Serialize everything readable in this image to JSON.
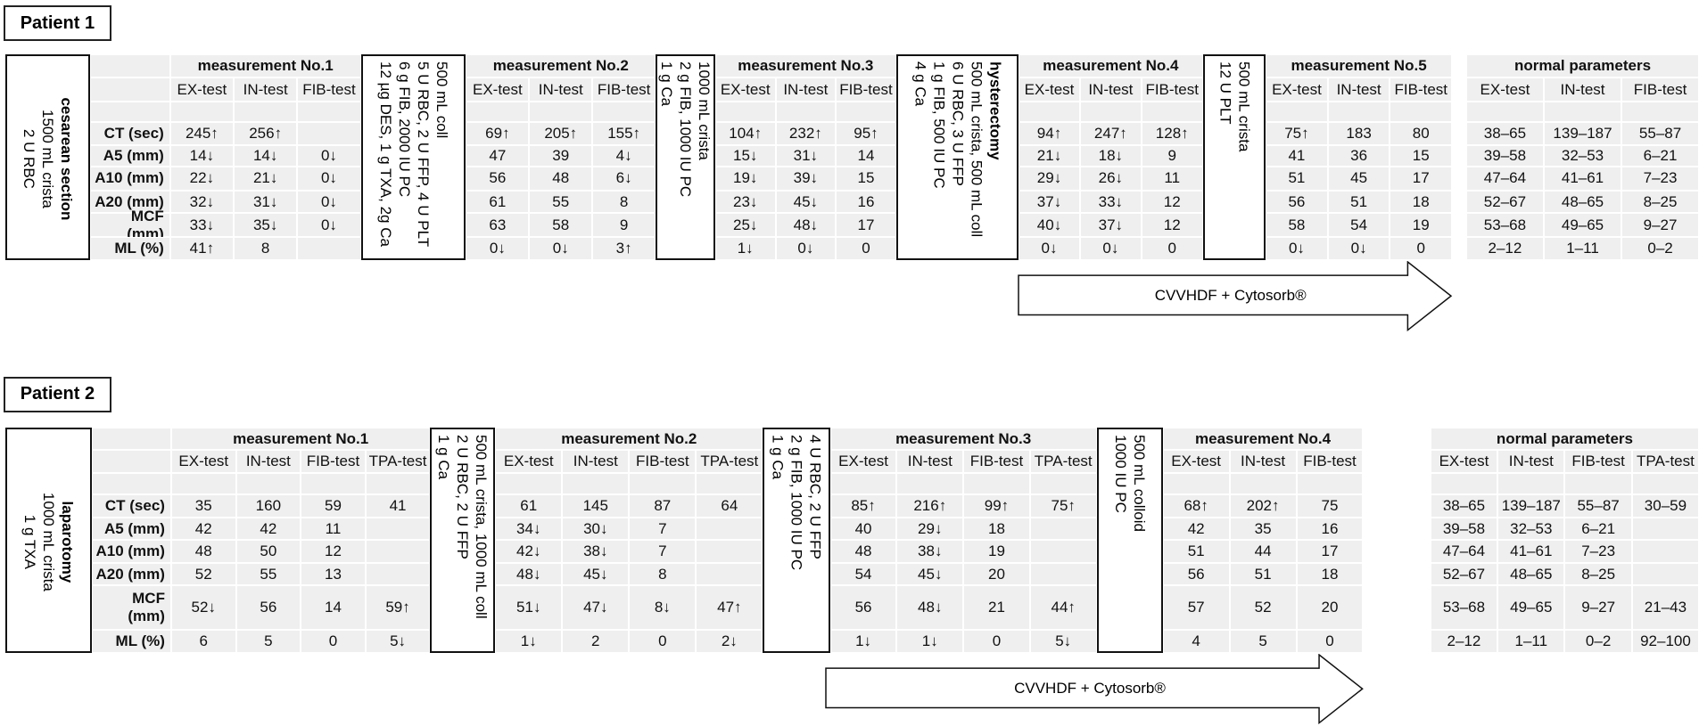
{
  "patients": [
    {
      "title": "Patient 1",
      "row_labels": [
        "CT (sec)",
        "A5 (mm)",
        "A10 (mm)",
        "A20 (mm)",
        "MCF (mm)",
        "ML (%)"
      ],
      "interventions": [
        {
          "heading": "cesarean section",
          "lines": [
            "1500 mL crista",
            "2 U RBC"
          ]
        },
        {
          "lines": [
            "500 mL coll",
            "5 U RBC, 2 U FFP, 4 U PLT",
            "6 g FIB, 2000 IU PC",
            "12 µg DES, 1 g TXA, 2g Ca"
          ]
        },
        {
          "lines": [
            "1000 mL crista",
            "2 g FIB, 1000 IU PC",
            "1 g Ca"
          ]
        },
        {
          "heading": "hysterectomy",
          "lines": [
            "500 mL crista, 500 mL coll",
            "6 U RBC, 3 U FFP",
            "1 g FIB, 500 IU PC",
            "4 g Ca"
          ]
        },
        {
          "lines": [
            "500 mL crista",
            "12 U PLT"
          ]
        }
      ],
      "measurements": [
        {
          "title": "measurement No.1",
          "columns": [
            "EX-test",
            "IN-test",
            "FIB-test"
          ],
          "rows": [
            [
              "245↑",
              "256↑",
              null
            ],
            [
              "14↓",
              "14↓",
              "0↓"
            ],
            [
              "22↓",
              "21↓",
              "0↓"
            ],
            [
              "32↓",
              "31↓",
              "0↓"
            ],
            [
              "33↓",
              "35↓",
              "0↓"
            ],
            [
              "41↑",
              "8",
              null
            ]
          ]
        },
        {
          "title": "measurement No.2",
          "columns": [
            "EX-test",
            "IN-test",
            "FIB-test"
          ],
          "rows": [
            [
              "69↑",
              "205↑",
              "155↑"
            ],
            [
              "47",
              "39",
              "4↓"
            ],
            [
              "56",
              "48",
              "6↓"
            ],
            [
              "61",
              "55",
              "8"
            ],
            [
              "63",
              "58",
              "9"
            ],
            [
              "0↓",
              "0↓",
              "3↑"
            ]
          ]
        },
        {
          "title": "measurement No.3",
          "columns": [
            "EX-test",
            "IN-test",
            "FIB-test"
          ],
          "rows": [
            [
              "104↑",
              "232↑",
              "95↑"
            ],
            [
              "15↓",
              "31↓",
              "14"
            ],
            [
              "19↓",
              "39↓",
              "15"
            ],
            [
              "23↓",
              "45↓",
              "16"
            ],
            [
              "25↓",
              "48↓",
              "17"
            ],
            [
              "1↓",
              "0↓",
              "0"
            ]
          ]
        },
        {
          "title": "measurement No.4",
          "columns": [
            "EX-test",
            "IN-test",
            "FIB-test"
          ],
          "rows": [
            [
              "94↑",
              "247↑",
              "128↑"
            ],
            [
              "21↓",
              "18↓",
              "9"
            ],
            [
              "29↓",
              "26↓",
              "11"
            ],
            [
              "37↓",
              "33↓",
              "12"
            ],
            [
              "40↓",
              "37↓",
              "12"
            ],
            [
              "0↓",
              "0↓",
              "0"
            ]
          ]
        },
        {
          "title": "measurement No.5",
          "columns": [
            "EX-test",
            "IN-test",
            "FIB-test"
          ],
          "rows": [
            [
              "75↑",
              "183",
              "80"
            ],
            [
              "41",
              "36",
              "15"
            ],
            [
              "51",
              "45",
              "17"
            ],
            [
              "56",
              "51",
              "18"
            ],
            [
              "58",
              "54",
              "19"
            ],
            [
              "0↓",
              "0↓",
              "0"
            ]
          ]
        }
      ],
      "normal": {
        "title": "normal parameters",
        "columns": [
          "EX-test",
          "IN-test",
          "FIB-test"
        ],
        "rows": [
          [
            "38–65",
            "139–187",
            "55–87"
          ],
          [
            "39–58",
            "32–53",
            "6–21"
          ],
          [
            "47–64",
            "41–61",
            "7–23"
          ],
          [
            "52–67",
            "48–65",
            "8–25"
          ],
          [
            "53–68",
            "49–65",
            "9–27"
          ],
          [
            "2–12",
            "1–11",
            "0–2"
          ]
        ]
      },
      "arrow": "CVVHDF + Cytosorb®"
    },
    {
      "title": "Patient 2",
      "row_labels": [
        "CT (sec)",
        "A5 (mm)",
        "A10 (mm)",
        "A20 (mm)",
        "MCF (mm)",
        "ML (%)"
      ],
      "interventions": [
        {
          "heading": "laparotomy",
          "lines": [
            "1000 mL crista",
            "1 g TXA"
          ]
        },
        {
          "lines": [
            "500 mL crista, 1000 mL coll",
            "2 U RBC, 2 U FFP",
            "1 g Ca"
          ]
        },
        {
          "lines": [
            "4 U RBC, 2 U FFP",
            "2 g FIB, 1000 IU PC",
            "1 g Ca"
          ]
        },
        {
          "lines": [
            "500 mL colloid",
            "1000 IU PC"
          ]
        }
      ],
      "measurements": [
        {
          "title": "measurement No.1",
          "columns": [
            "EX-test",
            "IN-test",
            "FIB-test",
            "TPA-test"
          ],
          "rows": [
            [
              "35",
              "160",
              "59",
              "41"
            ],
            [
              "42",
              "42",
              "11",
              null
            ],
            [
              "48",
              "50",
              "12",
              null
            ],
            [
              "52",
              "55",
              "13",
              null
            ],
            [
              "52↓",
              "56",
              "14",
              "59↑"
            ],
            [
              "6",
              "5",
              "0",
              "5↓"
            ]
          ]
        },
        {
          "title": "measurement No.2",
          "columns": [
            "EX-test",
            "IN-test",
            "FIB-test",
            "TPA-test"
          ],
          "rows": [
            [
              "61",
              "145",
              "87",
              "64"
            ],
            [
              "34↓",
              "30↓",
              "7",
              null
            ],
            [
              "42↓",
              "38↓",
              "7",
              null
            ],
            [
              "48↓",
              "45↓",
              "8",
              null
            ],
            [
              "51↓",
              "47↓",
              "8↓",
              "47↑"
            ],
            [
              "1↓",
              "2",
              "0",
              "2↓"
            ]
          ]
        },
        {
          "title": "measurement No.3",
          "columns": [
            "EX-test",
            "IN-test",
            "FIB-test",
            "TPA-test"
          ],
          "rows": [
            [
              "85↑",
              "216↑",
              "99↑",
              "75↑"
            ],
            [
              "40",
              "29↓",
              "18",
              null
            ],
            [
              "48",
              "38↓",
              "19",
              null
            ],
            [
              "54",
              "45↓",
              "20",
              null
            ],
            [
              "56",
              "48↓",
              "21",
              "44↑"
            ],
            [
              "1↓",
              "1↓",
              "0",
              "5↓"
            ]
          ]
        },
        {
          "title": "measurement No.4",
          "columns": [
            "EX-test",
            "IN-test",
            "FIB-test"
          ],
          "rows": [
            [
              "68↑",
              "202↑",
              "75"
            ],
            [
              "42",
              "35",
              "16"
            ],
            [
              "51",
              "44",
              "17"
            ],
            [
              "56",
              "51",
              "18"
            ],
            [
              "57",
              "52",
              "20"
            ],
            [
              "4",
              "5",
              "0"
            ]
          ]
        }
      ],
      "normal": {
        "title": "normal parameters",
        "columns": [
          "EX-test",
          "IN-test",
          "FIB-test",
          "TPA-test"
        ],
        "rows": [
          [
            "38–65",
            "139–187",
            "55–87",
            "30–59"
          ],
          [
            "39–58",
            "32–53",
            "6–21",
            null
          ],
          [
            "47–64",
            "41–61",
            "7–23",
            null
          ],
          [
            "52–67",
            "48–65",
            "8–25",
            null
          ],
          [
            "53–68",
            "49–65",
            "9–27",
            "21–43"
          ],
          [
            "2–12",
            "1–11",
            "0–2",
            "92–100"
          ]
        ]
      },
      "arrow": "CVVHDF + Cytosorb®"
    }
  ]
}
